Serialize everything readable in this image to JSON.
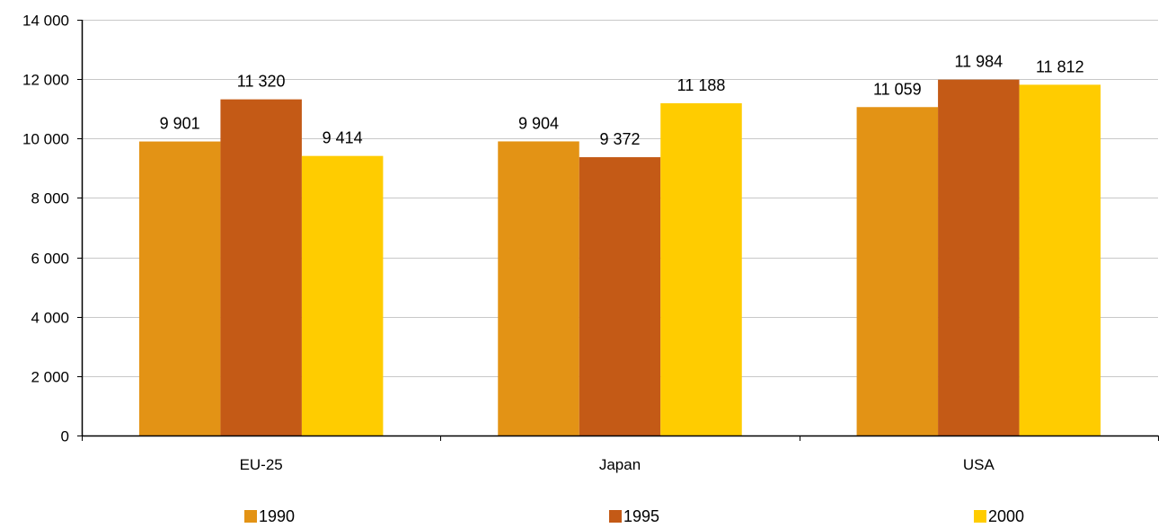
{
  "chart_data": {
    "type": "bar",
    "categories": [
      "EU-25",
      "Japan",
      "USA"
    ],
    "series": [
      {
        "name": "1990",
        "values": [
          9901,
          9904,
          11059
        ],
        "labels": [
          "9 901",
          "9 904",
          "11 059"
        ],
        "color": "#E39315"
      },
      {
        "name": "1995",
        "values": [
          11320,
          9372,
          11984
        ],
        "labels": [
          "11 320",
          "9 372",
          "11 984"
        ],
        "color": "#C45A16"
      },
      {
        "name": "2000",
        "values": [
          9414,
          11188,
          11812
        ],
        "labels": [
          "9 414",
          "11 188",
          "11 812"
        ],
        "color": "#FFCC00"
      }
    ],
    "ylim": [
      0,
      14000
    ],
    "yticks": [
      {
        "value": 0,
        "label": "0"
      },
      {
        "value": 2000,
        "label": "2 000"
      },
      {
        "value": 4000,
        "label": "4 000"
      },
      {
        "value": 6000,
        "label": "6 000"
      },
      {
        "value": 8000,
        "label": "8 000"
      },
      {
        "value": 10000,
        "label": "10 000"
      },
      {
        "value": 12000,
        "label": "12 000"
      },
      {
        "value": 14000,
        "label": "14 000"
      }
    ],
    "grid": true,
    "legend_position": "bottom"
  }
}
